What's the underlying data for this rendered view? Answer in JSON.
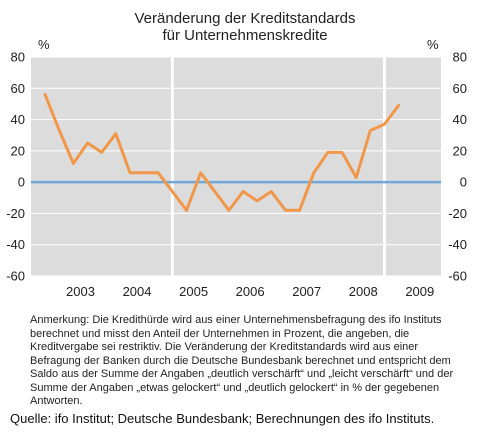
{
  "chart_data": {
    "type": "line",
    "title_line1": "Veränderung der Kreditstandards",
    "title_line2": "für Unternehmenskredite",
    "unit_left": "%",
    "unit_right": "%",
    "ylim": [
      -60,
      80
    ],
    "y_ticks": [
      80,
      60,
      40,
      20,
      0,
      -20,
      -40,
      -60
    ],
    "y_tick_labels": [
      "80",
      "60",
      "40",
      "20",
      "0",
      "-20",
      "-40",
      "-60"
    ],
    "xlim": [
      2002.5,
      2009.75
    ],
    "year_labels": [
      "2003",
      "2004",
      "2005",
      "2006",
      "2007",
      "2008",
      "2009"
    ],
    "year_boundaries": [
      2005,
      2008.75
    ],
    "grid": true,
    "zero_line_color": "#6fa8d8",
    "series": [
      {
        "color": "#f0974a",
        "x": [
          2002.75,
          2003.0,
          2003.25,
          2003.5,
          2003.75,
          2004.0,
          2004.25,
          2004.5,
          2004.75,
          2005.0,
          2005.25,
          2005.5,
          2005.75,
          2006.0,
          2006.25,
          2006.5,
          2006.75,
          2007.0,
          2007.25,
          2007.5,
          2007.75,
          2008.0,
          2008.25,
          2008.5,
          2008.75,
          2009.0,
          2009.25
        ],
        "values": [
          56,
          33,
          12,
          25,
          19,
          31,
          6,
          6,
          6,
          -6,
          -18,
          6,
          -6,
          -18,
          -6,
          -12,
          -6,
          -18,
          -18,
          6,
          19,
          19,
          3,
          33,
          37,
          49,
          null
        ]
      }
    ]
  },
  "note": "Anmerkung: Die Kredithürde wird aus einer Unternehmensbefragung des ifo Instituts berechnet und misst den Anteil der Unternehmen in Prozent, die angeben, die Kreditvergabe sei restriktiv. Die Veränderung der Kreditstandards wird aus einer Befragung der Banken durch die Deutsche Bundesbank berechnet und entspricht dem Saldo aus der Summe der Angaben „deutlich verschärft“ und „leicht verschärft“ und der Summe der Angaben „etwas gelockert“ und „deutlich gelockert“ in % der gegebenen Antworten.",
  "source": "Quelle: ifo Institut; Deutsche Bundesbank; Berechnungen des ifo Instituts."
}
